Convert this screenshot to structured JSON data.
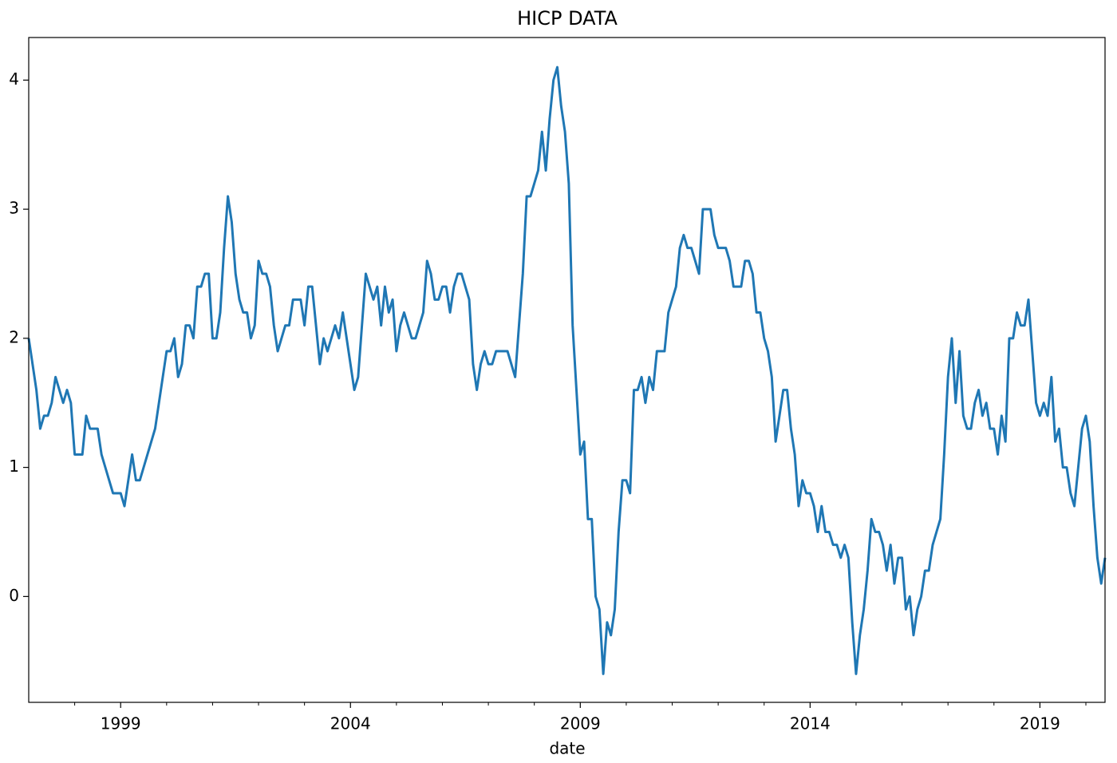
{
  "chart_data": {
    "type": "line",
    "title": "HICP DATA",
    "xlabel": "date",
    "color": "#1f77b4",
    "x": [
      "1997-01",
      "1997-02",
      "1997-03",
      "1997-04",
      "1997-05",
      "1997-06",
      "1997-07",
      "1997-08",
      "1997-09",
      "1997-10",
      "1997-11",
      "1997-12",
      "1998-01",
      "1998-02",
      "1998-03",
      "1998-04",
      "1998-05",
      "1998-06",
      "1998-07",
      "1998-08",
      "1998-09",
      "1998-10",
      "1998-11",
      "1998-12",
      "1999-01",
      "1999-02",
      "1999-03",
      "1999-04",
      "1999-05",
      "1999-06",
      "1999-07",
      "1999-08",
      "1999-09",
      "1999-10",
      "1999-11",
      "1999-12",
      "2000-01",
      "2000-02",
      "2000-03",
      "2000-04",
      "2000-05",
      "2000-06",
      "2000-07",
      "2000-08",
      "2000-09",
      "2000-10",
      "2000-11",
      "2000-12",
      "2001-01",
      "2001-02",
      "2001-03",
      "2001-04",
      "2001-05",
      "2001-06",
      "2001-07",
      "2001-08",
      "2001-09",
      "2001-10",
      "2001-11",
      "2001-12",
      "2002-01",
      "2002-02",
      "2002-03",
      "2002-04",
      "2002-05",
      "2002-06",
      "2002-07",
      "2002-08",
      "2002-09",
      "2002-10",
      "2002-11",
      "2002-12",
      "2003-01",
      "2003-02",
      "2003-03",
      "2003-04",
      "2003-05",
      "2003-06",
      "2003-07",
      "2003-08",
      "2003-09",
      "2003-10",
      "2003-11",
      "2003-12",
      "2004-01",
      "2004-02",
      "2004-03",
      "2004-04",
      "2004-05",
      "2004-06",
      "2004-07",
      "2004-08",
      "2004-09",
      "2004-10",
      "2004-11",
      "2004-12",
      "2005-01",
      "2005-02",
      "2005-03",
      "2005-04",
      "2005-05",
      "2005-06",
      "2005-07",
      "2005-08",
      "2005-09",
      "2005-10",
      "2005-11",
      "2005-12",
      "2006-01",
      "2006-02",
      "2006-03",
      "2006-04",
      "2006-05",
      "2006-06",
      "2006-07",
      "2006-08",
      "2006-09",
      "2006-10",
      "2006-11",
      "2006-12",
      "2007-01",
      "2007-02",
      "2007-03",
      "2007-04",
      "2007-05",
      "2007-06",
      "2007-07",
      "2007-08",
      "2007-09",
      "2007-10",
      "2007-11",
      "2007-12",
      "2008-01",
      "2008-02",
      "2008-03",
      "2008-04",
      "2008-05",
      "2008-06",
      "2008-07",
      "2008-08",
      "2008-09",
      "2008-10",
      "2008-11",
      "2008-12",
      "2009-01",
      "2009-02",
      "2009-03",
      "2009-04",
      "2009-05",
      "2009-06",
      "2009-07",
      "2009-08",
      "2009-09",
      "2009-10",
      "2009-11",
      "2009-12",
      "2010-01",
      "2010-02",
      "2010-03",
      "2010-04",
      "2010-05",
      "2010-06",
      "2010-07",
      "2010-08",
      "2010-09",
      "2010-10",
      "2010-11",
      "2010-12",
      "2011-01",
      "2011-02",
      "2011-03",
      "2011-04",
      "2011-05",
      "2011-06",
      "2011-07",
      "2011-08",
      "2011-09",
      "2011-10",
      "2011-11",
      "2011-12",
      "2012-01",
      "2012-02",
      "2012-03",
      "2012-04",
      "2012-05",
      "2012-06",
      "2012-07",
      "2012-08",
      "2012-09",
      "2012-10",
      "2012-11",
      "2012-12",
      "2013-01",
      "2013-02",
      "2013-03",
      "2013-04",
      "2013-05",
      "2013-06",
      "2013-07",
      "2013-08",
      "2013-09",
      "2013-10",
      "2013-11",
      "2013-12",
      "2014-01",
      "2014-02",
      "2014-03",
      "2014-04",
      "2014-05",
      "2014-06",
      "2014-07",
      "2014-08",
      "2014-09",
      "2014-10",
      "2014-11",
      "2014-12",
      "2015-01",
      "2015-02",
      "2015-03",
      "2015-04",
      "2015-05",
      "2015-06",
      "2015-07",
      "2015-08",
      "2015-09",
      "2015-10",
      "2015-11",
      "2015-12",
      "2016-01",
      "2016-02",
      "2016-03",
      "2016-04",
      "2016-05",
      "2016-06",
      "2016-07",
      "2016-08",
      "2016-09",
      "2016-10",
      "2016-11",
      "2016-12",
      "2017-01",
      "2017-02",
      "2017-03",
      "2017-04",
      "2017-05",
      "2017-06",
      "2017-07",
      "2017-08",
      "2017-09",
      "2017-10",
      "2017-11",
      "2017-12",
      "2018-01",
      "2018-02",
      "2018-03",
      "2018-04",
      "2018-05",
      "2018-06",
      "2018-07",
      "2018-08",
      "2018-09",
      "2018-10",
      "2018-11",
      "2018-12",
      "2019-01",
      "2019-02",
      "2019-03",
      "2019-04",
      "2019-05",
      "2019-06",
      "2019-07",
      "2019-08",
      "2019-09",
      "2019-10",
      "2019-11",
      "2019-12",
      "2020-01",
      "2020-02",
      "2020-03",
      "2020-04",
      "2020-05",
      "2020-06"
    ],
    "values": [
      2.0,
      1.8,
      1.6,
      1.3,
      1.4,
      1.4,
      1.5,
      1.7,
      1.6,
      1.5,
      1.6,
      1.5,
      1.1,
      1.1,
      1.1,
      1.4,
      1.3,
      1.3,
      1.3,
      1.1,
      1.0,
      0.9,
      0.8,
      0.8,
      0.8,
      0.7,
      0.9,
      1.1,
      0.9,
      0.9,
      1.0,
      1.1,
      1.2,
      1.3,
      1.5,
      1.7,
      1.9,
      1.9,
      2.0,
      1.7,
      1.8,
      2.1,
      2.1,
      2.0,
      2.4,
      2.4,
      2.5,
      2.5,
      2.0,
      2.0,
      2.2,
      2.7,
      3.1,
      2.9,
      2.5,
      2.3,
      2.2,
      2.2,
      2.0,
      2.1,
      2.6,
      2.5,
      2.5,
      2.4,
      2.1,
      1.9,
      2.0,
      2.1,
      2.1,
      2.3,
      2.3,
      2.3,
      2.1,
      2.4,
      2.4,
      2.1,
      1.8,
      2.0,
      1.9,
      2.0,
      2.1,
      2.0,
      2.2,
      2.0,
      1.8,
      1.6,
      1.7,
      2.1,
      2.5,
      2.4,
      2.3,
      2.4,
      2.1,
      2.4,
      2.2,
      2.3,
      1.9,
      2.1,
      2.2,
      2.1,
      2.0,
      2.0,
      2.1,
      2.2,
      2.6,
      2.5,
      2.3,
      2.3,
      2.4,
      2.4,
      2.2,
      2.4,
      2.5,
      2.5,
      2.4,
      2.3,
      1.8,
      1.6,
      1.8,
      1.9,
      1.8,
      1.8,
      1.9,
      1.9,
      1.9,
      1.9,
      1.8,
      1.7,
      2.1,
      2.5,
      3.1,
      3.1,
      3.2,
      3.3,
      3.6,
      3.3,
      3.7,
      4.0,
      4.1,
      3.8,
      3.6,
      3.2,
      2.1,
      1.6,
      1.1,
      1.2,
      0.6,
      0.6,
      0.0,
      -0.1,
      -0.6,
      -0.2,
      -0.3,
      -0.1,
      0.5,
      0.9,
      0.9,
      0.8,
      1.6,
      1.6,
      1.7,
      1.5,
      1.7,
      1.6,
      1.9,
      1.9,
      1.9,
      2.2,
      2.3,
      2.4,
      2.7,
      2.8,
      2.7,
      2.7,
      2.6,
      2.5,
      3.0,
      3.0,
      3.0,
      2.8,
      2.7,
      2.7,
      2.7,
      2.6,
      2.4,
      2.4,
      2.4,
      2.6,
      2.6,
      2.5,
      2.2,
      2.2,
      2.0,
      1.9,
      1.7,
      1.2,
      1.4,
      1.6,
      1.6,
      1.3,
      1.1,
      0.7,
      0.9,
      0.8,
      0.8,
      0.7,
      0.5,
      0.7,
      0.5,
      0.5,
      0.4,
      0.4,
      0.3,
      0.4,
      0.3,
      -0.2,
      -0.6,
      -0.3,
      -0.1,
      0.2,
      0.6,
      0.5,
      0.5,
      0.4,
      0.2,
      0.4,
      0.1,
      0.3,
      0.3,
      -0.1,
      0.0,
      -0.3,
      -0.1,
      0.0,
      0.2,
      0.2,
      0.4,
      0.5,
      0.6,
      1.1,
      1.7,
      2.0,
      1.5,
      1.9,
      1.4,
      1.3,
      1.3,
      1.5,
      1.6,
      1.4,
      1.5,
      1.3,
      1.3,
      1.1,
      1.4,
      1.2,
      2.0,
      2.0,
      2.2,
      2.1,
      2.1,
      2.3,
      1.9,
      1.5,
      1.4,
      1.5,
      1.4,
      1.7,
      1.2,
      1.3,
      1.0,
      1.0,
      0.8,
      0.7,
      1.0,
      1.3,
      1.4,
      1.2,
      0.7,
      0.3,
      0.1,
      0.3
    ],
    "xlim": [
      "1997-01",
      "2020-06"
    ],
    "xticks": [
      {
        "value": "1999-01",
        "label": "1999"
      },
      {
        "value": "2004-01",
        "label": "2004"
      },
      {
        "value": "2009-01",
        "label": "2009"
      },
      {
        "value": "2014-01",
        "label": "2014"
      },
      {
        "value": "2019-01",
        "label": "2019"
      }
    ],
    "xminorticks": [
      "1998-01",
      "2000-01",
      "2001-01",
      "2002-01",
      "2003-01",
      "2005-01",
      "2006-01",
      "2007-01",
      "2008-01",
      "2010-01",
      "2011-01",
      "2012-01",
      "2013-01",
      "2015-01",
      "2016-01",
      "2017-01",
      "2018-01",
      "2020-01"
    ],
    "ylim": [
      -0.82,
      4.33
    ],
    "yticks": [
      0,
      1,
      2,
      3,
      4
    ],
    "grid": false
  }
}
